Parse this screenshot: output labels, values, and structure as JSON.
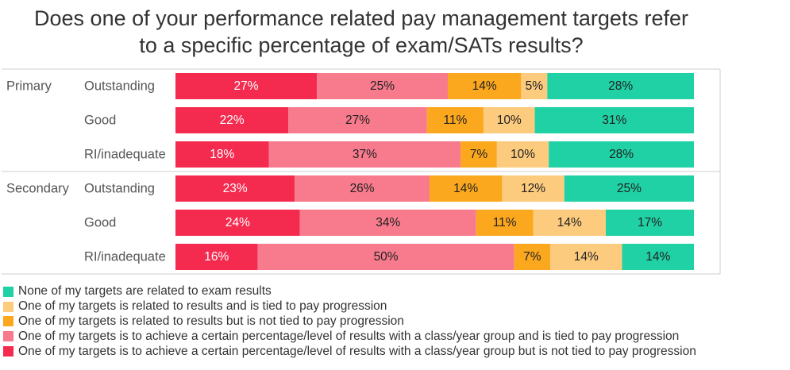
{
  "title": {
    "line1": "Does one of your performance related pay management targets refer",
    "line2": "to a specific percentage of exam/SATs results?"
  },
  "chart_data": {
    "type": "bar",
    "orientation": "horizontal",
    "stacked": true,
    "normalized": true,
    "title": "Does one of your performance related pay management targets refer to a specific percentage of exam/SATs results?",
    "groups": [
      {
        "name": "Primary",
        "categories": [
          "Outstanding",
          "Good",
          "RI/inadequate"
        ]
      },
      {
        "name": "Secondary",
        "categories": [
          "Outstanding",
          "Good",
          "RI/inadequate"
        ]
      }
    ],
    "series": [
      {
        "name": "One of my targets is to achieve a certain percentage/level of results with a class/year group but is not tied to pay progression",
        "color": "#F42A4F",
        "values": [
          27,
          22,
          18,
          23,
          24,
          16
        ],
        "labels": [
          "27%",
          "22%",
          "18%",
          "23%",
          "24%",
          "16%"
        ]
      },
      {
        "name": "One of my targets is to achieve a certain percentage/level of results with a class/year group and is tied to pay progression",
        "color": "#F77A8D",
        "values": [
          25,
          27,
          37,
          26,
          34,
          50
        ],
        "labels": [
          "25%",
          "27%",
          "37%",
          "26%",
          "34%",
          "50%"
        ]
      },
      {
        "name": "One of my targets is related to results but is not tied to pay progression",
        "color": "#FCA81E",
        "values": [
          14,
          11,
          7,
          14,
          11,
          7
        ],
        "labels": [
          "14%",
          "11%",
          "7%",
          "14%",
          "11%",
          "7%"
        ]
      },
      {
        "name": "One of my targets is related to results and is tied to pay progression",
        "color": "#FDCB7E",
        "values": [
          5,
          10,
          10,
          12,
          14,
          14
        ],
        "labels": [
          "5%",
          "10%",
          "10%",
          "12%",
          "14%",
          "14%"
        ]
      },
      {
        "name": "None of my targets are related to exam results",
        "color": "#1FD1A4",
        "values": [
          28,
          31,
          28,
          25,
          17,
          14
        ],
        "labels": [
          "28%",
          "31%",
          "28%",
          "25%",
          "17%",
          "14%"
        ]
      }
    ],
    "legend": {
      "position": "bottom-left",
      "order": [
        4,
        3,
        2,
        1,
        0
      ]
    },
    "xlim": [
      0,
      100
    ],
    "grid": false
  }
}
